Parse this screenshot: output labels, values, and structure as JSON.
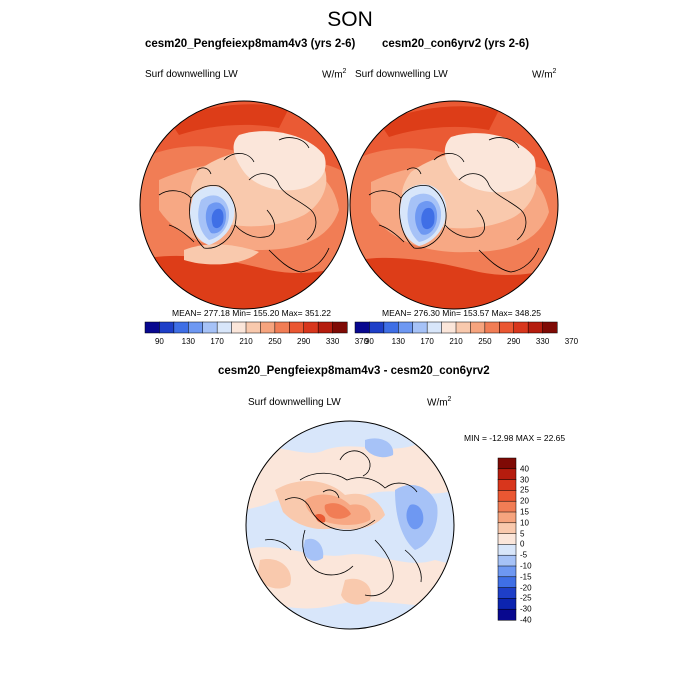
{
  "figure": {
    "title": "SON"
  },
  "panels": [
    {
      "title": "cesm20_Pengfeiexp8mam4v3 (yrs 2-6)",
      "variable": "Surf downwelling LW",
      "units_base": "W/m",
      "units_exp": "2",
      "stats": "MEAN= 277.18  Min= 155.20  Max= 351.22"
    },
    {
      "title": "cesm20_con6yrv2 (yrs 2-6)",
      "variable": "Surf downwelling LW",
      "units_base": "W/m",
      "units_exp": "2",
      "stats": "MEAN= 276.30  Min= 153.57  Max= 348.25"
    },
    {
      "title": "cesm20_Pengfeiexp8mam4v3 - cesm20_con6yrv2",
      "variable": "Surf downwelling LW",
      "units_base": "W/m",
      "units_exp": "2",
      "stats": "MIN = -12.98 MAX =  22.65"
    }
  ],
  "colorbar_abs": {
    "labels": [
      "90",
      "130",
      "170",
      "210",
      "250",
      "290",
      "330",
      "370"
    ],
    "colors": [
      "#08088f",
      "#1e3fc8",
      "#3f6fe6",
      "#6e98f2",
      "#a6c2f7",
      "#d8e6fa",
      "#fbe6da",
      "#f9c9ad",
      "#f6a47e",
      "#f17d55",
      "#ea5732",
      "#d8361c",
      "#b51c0e",
      "#7f0a05"
    ]
  },
  "colorbar_diff": {
    "labels": [
      "40",
      "30",
      "25",
      "20",
      "15",
      "10",
      "5",
      "0",
      "-5",
      "-10",
      "-15",
      "-20",
      "-25",
      "-30",
      "-40"
    ],
    "colors": [
      "#7f0a05",
      "#b51c0e",
      "#d8361c",
      "#ea5732",
      "#f17d55",
      "#f6a47e",
      "#f9c9ad",
      "#fbe6da",
      "#d8e6fa",
      "#a6c2f7",
      "#6e98f2",
      "#3f6fe6",
      "#1e3fc8",
      "#0c24b0",
      "#08088f"
    ]
  },
  "map_colors": {
    "warm_dark": "#dd3d18",
    "warm_mid": "#ea5a34",
    "warm_light": "#f17d55",
    "warm_pale": "#f7a884",
    "warm_paler": "#f9c9ad",
    "neutral": "#fbe6da",
    "cool_pale": "#d8e6fa",
    "cool_light": "#a6c2f7",
    "cool_mid": "#6e98f2",
    "cool_dark": "#3f6fe6"
  }
}
